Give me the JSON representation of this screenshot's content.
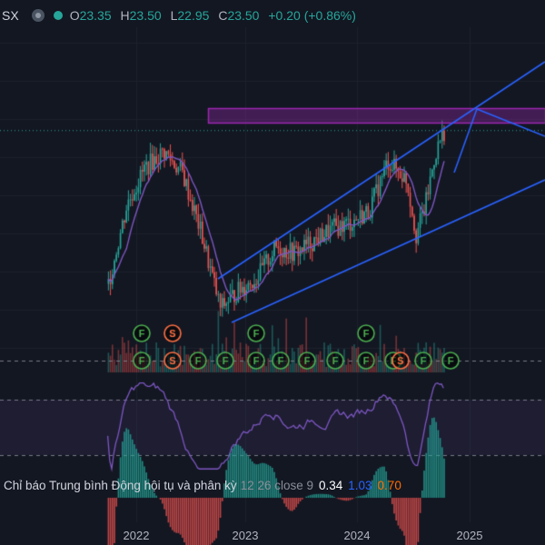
{
  "header": {
    "symbol": "SX",
    "open_label": "O",
    "open": "23.35",
    "high_label": "H",
    "high": "23.50",
    "low_label": "L",
    "low": "22.95",
    "close_label": "C",
    "close": "23.50",
    "change": "+0.20 (+0.86%)"
  },
  "signals": {
    "f_label": "F",
    "s_label": "S"
  },
  "macd": {
    "name": "Chỉ báo Trung bình Động hội tụ và phân kỳ",
    "params": "12 26 close 9",
    "value_hist": "0.34",
    "value_macd": "1.03",
    "value_signal": "0.70"
  },
  "xaxis": {
    "labels": [
      "2022",
      "2023",
      "2024",
      "2025"
    ]
  },
  "colors": {
    "background": "#131722",
    "up": "#26a69a",
    "down": "#ef5350",
    "trendline": "#2962ff",
    "ma": "#7e57c2",
    "rsi": "#7e57c2",
    "zone": "#9c27b0",
    "signal_f": "#4caf50",
    "signal_s": "#ff7043"
  },
  "chart_data": {
    "type": "candlestick",
    "x_range": [
      "2021-09",
      "2025-06"
    ],
    "y_note": "price (VND thousands)",
    "price_series": [
      {
        "t": "2021-11",
        "close": 11.0
      },
      {
        "t": "2022-01",
        "close": 17.5
      },
      {
        "t": "2022-03",
        "close": 20.5
      },
      {
        "t": "2022-05",
        "close": 21.8
      },
      {
        "t": "2022-07",
        "close": 20.0
      },
      {
        "t": "2022-09",
        "close": 15.0
      },
      {
        "t": "2022-11",
        "close": 9.0
      },
      {
        "t": "2023-01",
        "close": 10.5
      },
      {
        "t": "2023-03",
        "close": 11.5
      },
      {
        "t": "2023-05",
        "close": 14.0
      },
      {
        "t": "2023-07",
        "close": 13.5
      },
      {
        "t": "2023-09",
        "close": 14.5
      },
      {
        "t": "2023-11",
        "close": 15.5
      },
      {
        "t": "2024-01",
        "close": 16.0
      },
      {
        "t": "2024-03",
        "close": 17.0
      },
      {
        "t": "2024-05",
        "close": 21.0
      },
      {
        "t": "2024-07",
        "close": 19.5
      },
      {
        "t": "2024-08",
        "close": 15.0
      },
      {
        "t": "2024-09",
        "close": 17.5
      },
      {
        "t": "2024-10",
        "close": 21.5
      },
      {
        "t": "2024-11",
        "close": 23.5
      }
    ],
    "rsi_range": [
      30,
      70
    ],
    "grid": true,
    "legend": "top-left"
  }
}
